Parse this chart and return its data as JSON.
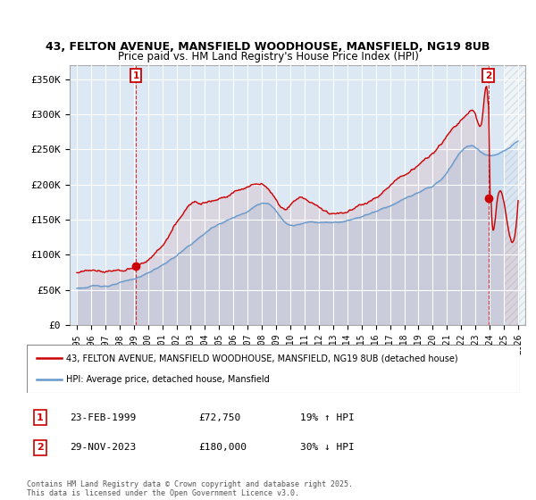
{
  "title_line1": "43, FELTON AVENUE, MANSFIELD WOODHOUSE, MANSFIELD, NG19 8UB",
  "title_line2": "Price paid vs. HM Land Registry's House Price Index (HPI)",
  "ylim": [
    0,
    370000
  ],
  "yticks": [
    0,
    50000,
    100000,
    150000,
    200000,
    250000,
    300000,
    350000
  ],
  "ytick_labels": [
    "£0",
    "£50K",
    "£100K",
    "£150K",
    "£200K",
    "£250K",
    "£300K",
    "£350K"
  ],
  "xlim_start": 1994.5,
  "xlim_end": 2026.5,
  "sale1_date": 1999.14,
  "sale1_price": 72750,
  "sale1_label": "1",
  "sale2_date": 2023.91,
  "sale2_price": 180000,
  "sale2_label": "2",
  "legend_line1": "43, FELTON AVENUE, MANSFIELD WOODHOUSE, MANSFIELD, NG19 8UB (detached house)",
  "legend_line2": "HPI: Average price, detached house, Mansfield",
  "annotation1_date": "23-FEB-1999",
  "annotation1_price": "£72,750",
  "annotation1_hpi": "19% ↑ HPI",
  "annotation2_date": "29-NOV-2023",
  "annotation2_price": "£180,000",
  "annotation2_hpi": "30% ↓ HPI",
  "footer": "Contains HM Land Registry data © Crown copyright and database right 2025.\nThis data is licensed under the Open Government Licence v3.0.",
  "line_color_red": "#cc0000",
  "line_color_blue": "#6699cc",
  "plot_bg_color": "#dce9f5",
  "background_color": "#ffffff",
  "grid_color": "#ffffff",
  "hatch_color": "#cccccc"
}
